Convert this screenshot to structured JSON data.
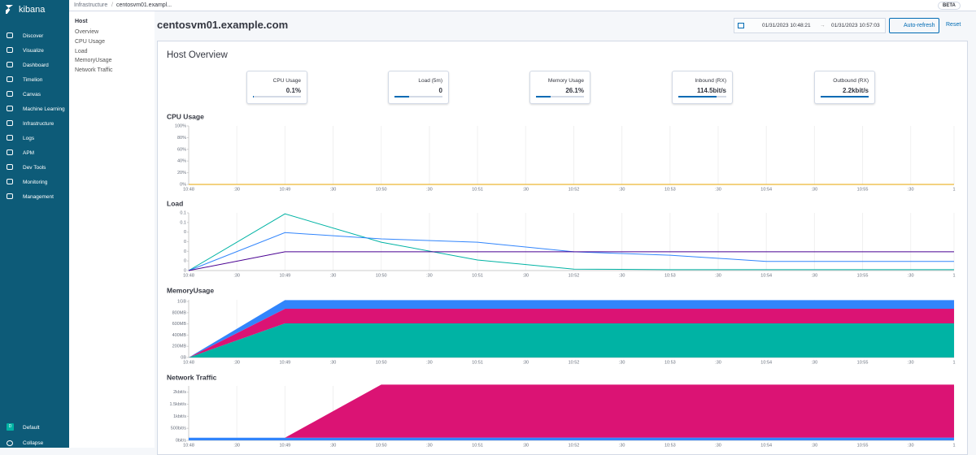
{
  "brand": "kibana",
  "beta": "BETA",
  "nav": [
    "Discover",
    "Visualize",
    "Dashboard",
    "Timelion",
    "Canvas",
    "Machine Learning",
    "Infrastructure",
    "Logs",
    "APM",
    "Dev Tools",
    "Monitoring",
    "Management"
  ],
  "space": {
    "badge": "D",
    "label": "Default"
  },
  "collapse": "Collapse",
  "breadcrumbs": [
    "Infrastructure",
    "centosvm01.exampl..."
  ],
  "subnav": {
    "title": "Host",
    "items": [
      "Overview",
      "CPU Usage",
      "Load",
      "MemoryUsage",
      "Network Traffic"
    ]
  },
  "header": {
    "title": "centosvm01.example.com",
    "start": "01/31/2023 10:48:21",
    "arrow": "→",
    "end": "01/31/2023 10:57:03",
    "refresh": "Auto-refresh",
    "reset": "Reset"
  },
  "panel_title": "Host Overview",
  "metrics": [
    {
      "label": "CPU Usage",
      "value": "0.1%",
      "bar": 0.01
    },
    {
      "label": "Load (5m)",
      "value": "0",
      "bar": 0.3
    },
    {
      "label": "Memory Usage",
      "value": "26.1%",
      "bar": 0.3
    },
    {
      "label": "Inbound (RX)",
      "value": "114.5bit/s",
      "bar": 0.8
    },
    {
      "label": "Outbound (RX)",
      "value": "2.2kbit/s",
      "bar": 1
    }
  ],
  "charts": [
    {
      "title": "CPU Usage",
      "type": "line",
      "x": [
        0,
        1,
        2,
        3,
        4,
        5,
        6,
        7,
        7.95
      ],
      "xlim": [
        0,
        7.95
      ],
      "series": [
        {
          "color": "#e7a600",
          "values": [
            0,
            0,
            0,
            0,
            0,
            0,
            0,
            0,
            0
          ]
        }
      ],
      "ylim": [
        0,
        100
      ],
      "yticks": [
        {
          "value": 0,
          "label": "0%"
        },
        {
          "value": 20,
          "label": "20%"
        },
        {
          "value": 40,
          "label": "40%"
        },
        {
          "value": 60,
          "label": "60%"
        },
        {
          "value": 80,
          "label": "80%"
        },
        {
          "value": 100,
          "label": "100%"
        }
      ]
    },
    {
      "title": "Load",
      "type": "line",
      "x": [
        0,
        1,
        2,
        3,
        4,
        5,
        6,
        7,
        7.95
      ],
      "xlim": [
        0,
        7.95
      ],
      "series": [
        {
          "color": "#00b3a4",
          "values": [
            0,
            0.118,
            0.059,
            0.022,
            0.003,
            0.002,
            0.002,
            0.002,
            0.002
          ]
        },
        {
          "color": "#3185fc",
          "values": [
            0,
            0.079,
            0.066,
            0.059,
            0.039,
            0.032,
            0.019,
            0.019,
            0.019
          ]
        },
        {
          "color": "#490092",
          "values": [
            0,
            0.039,
            0.039,
            0.039,
            0.039,
            0.039,
            0.039,
            0.039,
            0.039
          ]
        }
      ],
      "ylim": [
        0,
        0.12
      ],
      "yticks": [
        0,
        {
          "value": 0.02,
          "label": "0"
        },
        {
          "value": 0.04,
          "label": "0"
        },
        {
          "value": 0.06,
          "label": "0"
        },
        {
          "value": 0.08,
          "label": "0"
        },
        0.1,
        {
          "value": 0.12,
          "label": "0.1"
        }
      ]
    },
    {
      "title": "MemoryUsage",
      "type": "stacked-area",
      "x": [
        0,
        1,
        2,
        3,
        4,
        5,
        6,
        7,
        7.95
      ],
      "xlim": [
        0,
        7.95
      ],
      "series": [
        {
          "color": "#00b3a4",
          "values": [
            0,
            610,
            610,
            610,
            610,
            610,
            610,
            610,
            610
          ]
        },
        {
          "color": "#db1374",
          "values": [
            0,
            260,
            260,
            260,
            260,
            260,
            260,
            260,
            260
          ]
        },
        {
          "color": "#3185fc",
          "values": [
            0,
            155,
            155,
            155,
            155,
            155,
            155,
            155,
            155
          ]
        }
      ],
      "ylim": [
        0,
        1030
      ],
      "yticks": [
        {
          "value": 0,
          "label": "0B"
        },
        {
          "value": 200,
          "label": "200MB"
        },
        {
          "value": 400,
          "label": "400MB"
        },
        {
          "value": 600,
          "label": "600MB"
        },
        {
          "value": 800,
          "label": "800MB"
        },
        {
          "value": 1000,
          "label": "1GB"
        }
      ]
    },
    {
      "title": "Network Traffic",
      "type": "stacked-area",
      "x": [
        0,
        1,
        2,
        3,
        4,
        5,
        6,
        7,
        7.95
      ],
      "xlim": [
        0,
        7.95
      ],
      "series": [
        {
          "color": "#3185fc",
          "values": [
            110,
            110,
            115,
            115,
            115,
            115,
            115,
            115,
            115
          ]
        },
        {
          "color": "#db1374",
          "values": [
            0,
            0,
            2200,
            2200,
            2200,
            2200,
            2200,
            2200,
            2200
          ]
        }
      ],
      "ylim": [
        0,
        2260
      ],
      "yticks": [
        {
          "value": 0,
          "label": "0bit/s"
        },
        {
          "value": 500,
          "label": "500bit/s"
        },
        {
          "value": 1000,
          "label": "1kbit/s"
        },
        {
          "value": 1500,
          "label": "1.5kbit/s"
        },
        {
          "value": 2000,
          "label": "2kbit/s"
        }
      ]
    }
  ],
  "xticks": [
    {
      "value": 0,
      "label": "10:48"
    },
    {
      "value": 0.5,
      "label": ":30"
    },
    {
      "value": 1,
      "label": "10:49"
    },
    {
      "value": 1.5,
      "label": ":30"
    },
    {
      "value": 2,
      "label": "10:50"
    },
    {
      "value": 2.5,
      "label": ":30"
    },
    {
      "value": 3,
      "label": "10:51"
    },
    {
      "value": 3.5,
      "label": ":30"
    },
    {
      "value": 4,
      "label": "10:52"
    },
    {
      "value": 4.5,
      "label": ":30"
    },
    {
      "value": 5,
      "label": "10:53"
    },
    {
      "value": 5.5,
      "label": ":30"
    },
    {
      "value": 6,
      "label": "10:54"
    },
    {
      "value": 6.5,
      "label": ":30"
    },
    {
      "value": 7,
      "label": "10:55"
    },
    {
      "value": 7.5,
      "label": ":30"
    },
    {
      "value": 7.95,
      "label": "1"
    }
  ]
}
